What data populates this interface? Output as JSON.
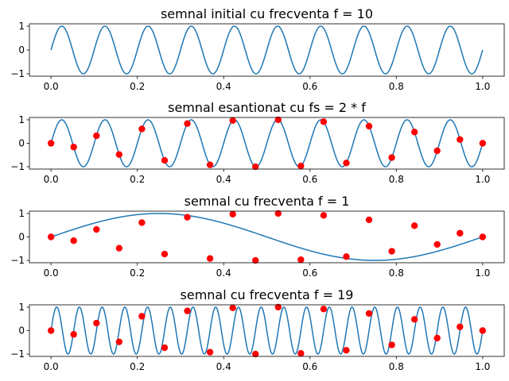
{
  "chart_data": [
    {
      "type": "line",
      "title": "semnal initial cu frecventa f = 10",
      "xlim": [
        -0.05,
        1.05
      ],
      "ylim": [
        -1.1,
        1.1
      ],
      "xticks": [
        "0.0",
        "0.2",
        "0.4",
        "0.6",
        "0.8",
        "1.0"
      ],
      "yticks": [
        "1",
        "0",
        "−1"
      ],
      "series": [
        {
          "kind": "line",
          "function": "sin(2*pi*10*t)",
          "x_range": [
            0,
            1
          ],
          "color": "#1f77b4"
        }
      ]
    },
    {
      "type": "line",
      "title": "semnal esantionat cu fs = 2 * f",
      "xlim": [
        -0.05,
        1.05
      ],
      "ylim": [
        -1.1,
        1.1
      ],
      "xticks": [
        "0.0",
        "0.2",
        "0.4",
        "0.6",
        "0.8",
        "1.0"
      ],
      "yticks": [
        "1",
        "0",
        "−1"
      ],
      "series": [
        {
          "kind": "line",
          "function": "sin(2*pi*10*t)",
          "x_range": [
            0,
            1
          ],
          "color": "#1f77b4"
        },
        {
          "kind": "scatter",
          "points_from": "samples",
          "color": "#ff0000"
        }
      ]
    },
    {
      "type": "line",
      "title": "semnal cu frecventa f = 1",
      "xlim": [
        -0.05,
        1.05
      ],
      "ylim": [
        -1.1,
        1.1
      ],
      "xticks": [
        "0.0",
        "0.2",
        "0.4",
        "0.6",
        "0.8",
        "1.0"
      ],
      "yticks": [
        "1",
        "0",
        "−1"
      ],
      "series": [
        {
          "kind": "line",
          "function": "sin(2*pi*1*t)",
          "x_range": [
            0,
            1
          ],
          "color": "#1f77b4"
        },
        {
          "kind": "scatter",
          "points_from": "samples",
          "color": "#ff0000"
        }
      ]
    },
    {
      "type": "line",
      "title": "semnal cu frecventa f = 19",
      "xlim": [
        -0.05,
        1.05
      ],
      "ylim": [
        -1.1,
        1.1
      ],
      "xticks": [
        "0.0",
        "0.2",
        "0.4",
        "0.6",
        "0.8",
        "1.0"
      ],
      "yticks": [
        "1",
        "0",
        "−1"
      ],
      "series": [
        {
          "kind": "line",
          "function": "sin(2*pi*19*t)",
          "x_range": [
            0,
            1
          ],
          "color": "#1f77b4"
        },
        {
          "kind": "scatter",
          "points_from": "samples",
          "color": "#ff0000"
        }
      ]
    }
  ],
  "samples": {
    "x": [
      0,
      0.0526,
      0.1053,
      0.1579,
      0.2105,
      0.2632,
      0.3158,
      0.3684,
      0.4211,
      0.4737,
      0.5263,
      0.5789,
      0.6316,
      0.6842,
      0.7368,
      0.7895,
      0.8421,
      0.8947,
      0.9474,
      1.0
    ],
    "y": [
      0,
      -0.16,
      0.32,
      -0.48,
      0.61,
      -0.73,
      0.84,
      -0.92,
      0.97,
      -1.0,
      1.0,
      -0.97,
      0.92,
      -0.84,
      0.73,
      -0.61,
      0.48,
      -0.32,
      0.16,
      0
    ]
  }
}
